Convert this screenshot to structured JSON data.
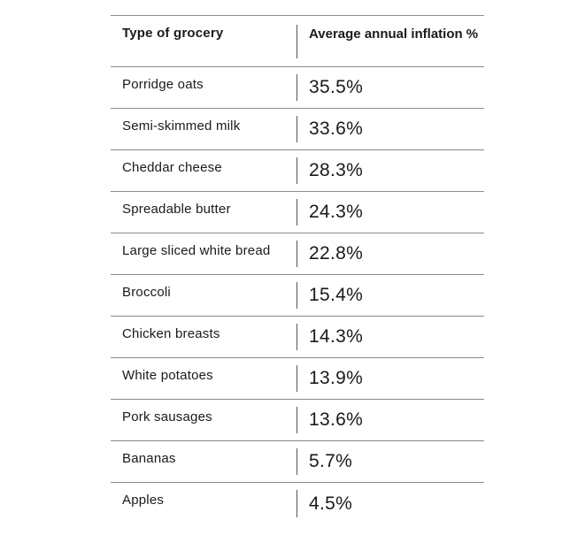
{
  "table": {
    "headers": {
      "type": "Type of grocery",
      "inflation": "Average annual inflation %"
    },
    "rows": [
      {
        "item": "Porridge oats",
        "value": "35.5%"
      },
      {
        "item": "Semi-skimmed milk",
        "value": "33.6%"
      },
      {
        "item": "Cheddar cheese",
        "value": "28.3%"
      },
      {
        "item": "Spreadable butter",
        "value": "24.3%"
      },
      {
        "item": "Large sliced white bread",
        "value": "22.8%"
      },
      {
        "item": "Broccoli",
        "value": "15.4%"
      },
      {
        "item": "Chicken breasts",
        "value": "14.3%"
      },
      {
        "item": "White potatoes",
        "value": "13.9%"
      },
      {
        "item": "Pork sausages",
        "value": "13.6%"
      },
      {
        "item": "Bananas",
        "value": "5.7%"
      },
      {
        "item": "Apples",
        "value": "4.5%"
      }
    ]
  },
  "colors": {
    "text": "#1a1a1a",
    "rule": "#8a8a8a",
    "divider": "#555555",
    "background": "#ffffff"
  }
}
